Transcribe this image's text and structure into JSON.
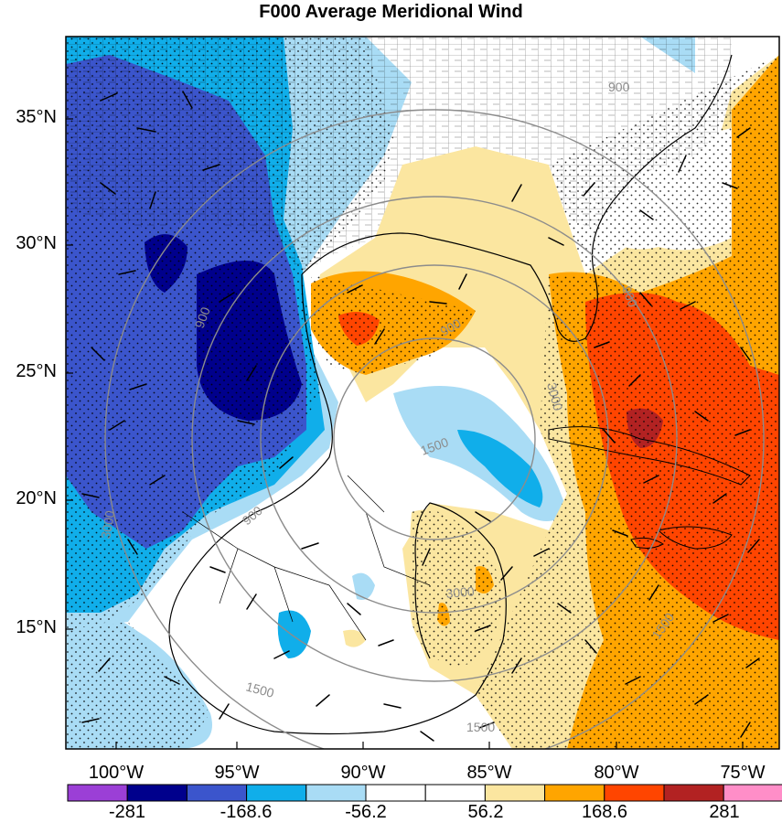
{
  "title": "F000 Average Meridional Wind",
  "lat_labels": [
    "35°N",
    "30°N",
    "25°N",
    "20°N",
    "15°N"
  ],
  "lon_labels": [
    "100°W",
    "95°W",
    "90°W",
    "85°W",
    "80°W",
    "75°W"
  ],
  "colorbar": {
    "colors": [
      "#9b3fd6",
      "#00008c",
      "#3b55cc",
      "#10aeea",
      "#a9dcf5",
      "#ffffff",
      "#ffffff",
      "#fbe6a0",
      "#ffa500",
      "#ff4500",
      "#b22222",
      "#ff8ec8"
    ],
    "labels": [
      "-281",
      "-168.6",
      "-56.2",
      "56.2",
      "168.6",
      "281"
    ]
  },
  "contour_labels": [
    "900",
    "900",
    "900",
    "900",
    "1500",
    "1500",
    "1500",
    "1500",
    "3000",
    "3000",
    "3000",
    "900"
  ],
  "colors": {
    "deep_negative": "#00008c",
    "negative": "#3b55cc",
    "mid_negative": "#10aeea",
    "light_negative": "#a9dcf5",
    "light_positive": "#fbe6a0",
    "positive": "#ffa500",
    "high_positive": "#ff4500",
    "extreme_positive": "#b22222"
  }
}
